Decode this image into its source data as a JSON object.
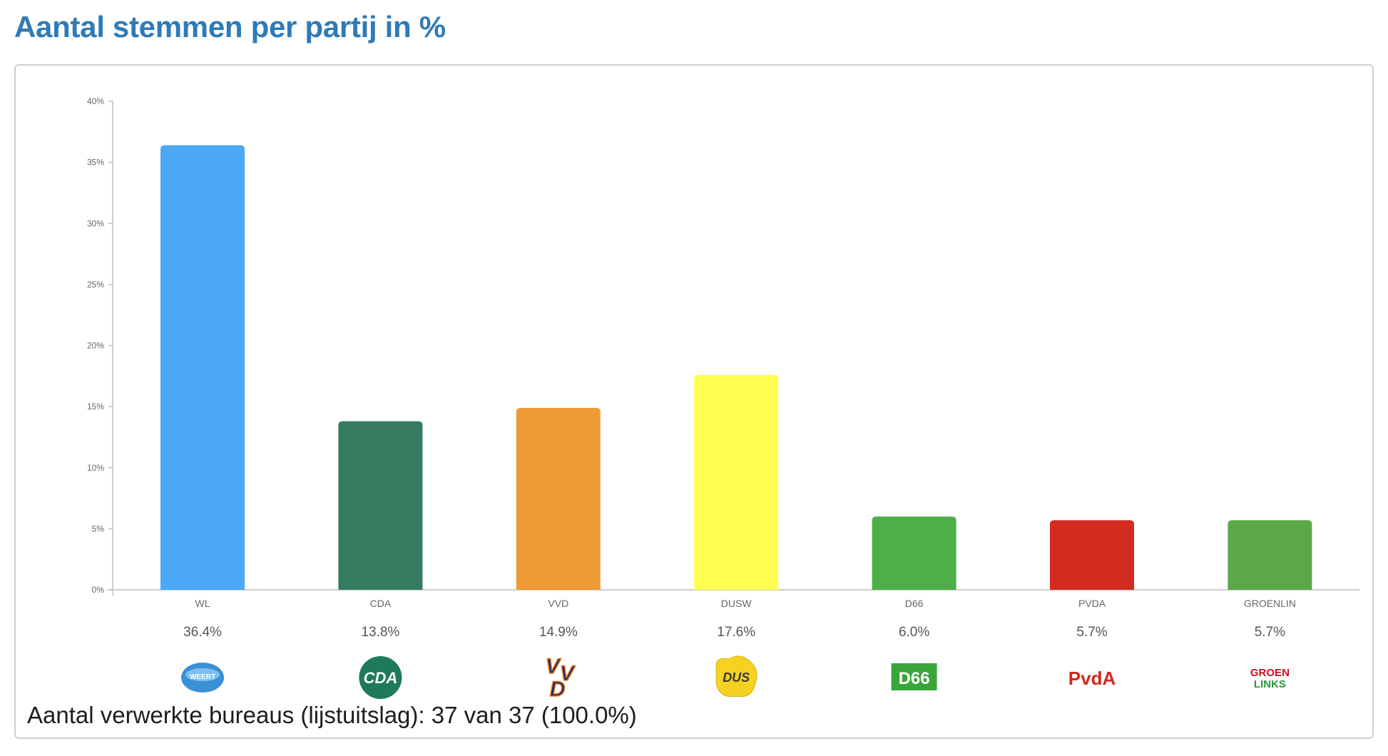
{
  "title": "Aantal stemmen per partij in %",
  "footer": "Aantal verwerkte bureaus (lijstuitslag): 37 van 37 (100.0%)",
  "chart_data": {
    "type": "bar",
    "categories": [
      "WL",
      "CDA",
      "VVD",
      "DUSW",
      "D66",
      "PVDA",
      "GROENLIN"
    ],
    "values": [
      36.4,
      13.8,
      14.9,
      17.6,
      6.0,
      5.7,
      5.7
    ],
    "value_labels": [
      "36.4%",
      "13.8%",
      "14.9%",
      "17.6%",
      "6.0%",
      "5.7%",
      "5.7%"
    ],
    "colors": [
      "#4aa8f5",
      "#357c60",
      "#ee9b37",
      "#ffff52",
      "#4daf4a",
      "#d42b20",
      "#5aa847"
    ],
    "ylim": [
      0,
      40
    ],
    "yticks": [
      0,
      5,
      10,
      15,
      20,
      25,
      30,
      35,
      40
    ],
    "ytick_labels": [
      "0%",
      "5%",
      "10%",
      "15%",
      "20%",
      "25%",
      "30%",
      "35%",
      "40%"
    ],
    "grid": false,
    "logos": [
      {
        "icon": "weert-lokaal-logo",
        "text": "WEERT",
        "color": "#3b8fd4"
      },
      {
        "icon": "cda-logo",
        "text": "CDA",
        "color": "#1f7a5c"
      },
      {
        "icon": "vvd-logo",
        "text": "VVD",
        "color": "#f07d19"
      },
      {
        "icon": "dus-logo",
        "text": "DUS",
        "color": "#f4d21f"
      },
      {
        "icon": "d66-logo",
        "text": "D66",
        "color": "#3aa63a"
      },
      {
        "icon": "pvda-logo",
        "text": "PvdA",
        "color": "#d1271d"
      },
      {
        "icon": "groenlinks-logo",
        "text": "GROEN LINKS",
        "color": "#c8101e"
      }
    ]
  }
}
